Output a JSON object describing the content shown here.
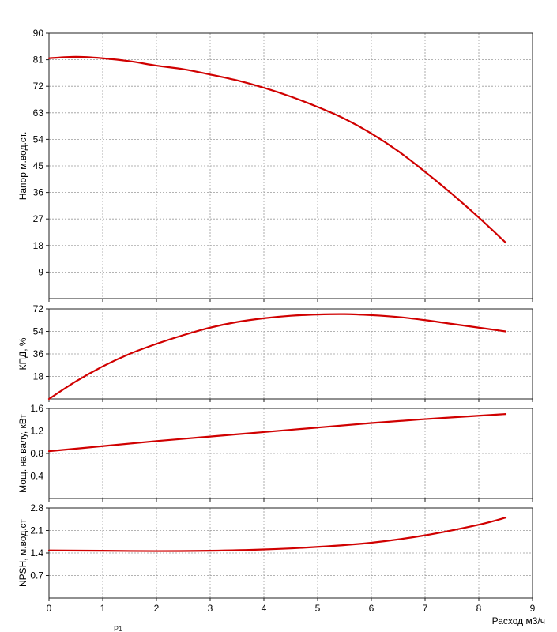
{
  "chart_data": [
    {
      "type": "line",
      "ylabel": "Напор м.вод.ст.",
      "ylim": [
        0,
        90
      ],
      "yticks": [
        9,
        18,
        27,
        36,
        45,
        54,
        63,
        72,
        81,
        90
      ],
      "xlim": [
        0,
        9
      ],
      "grid": true,
      "color": "#d00000",
      "x": [
        0,
        0.5,
        1,
        1.5,
        2,
        2.5,
        3,
        3.5,
        4,
        4.5,
        5,
        5.5,
        6,
        6.5,
        7,
        7.5,
        8,
        8.5
      ],
      "y": [
        81.5,
        82,
        81.5,
        80.5,
        79,
        77.8,
        76,
        74,
        71.5,
        68.5,
        65,
        61,
        56,
        50,
        43,
        35.5,
        27.5,
        19
      ]
    },
    {
      "type": "line",
      "ylabel": "КПД, %",
      "ylim": [
        0,
        72
      ],
      "yticks": [
        18,
        36,
        54,
        72
      ],
      "xlim": [
        0,
        9
      ],
      "grid": true,
      "color": "#d00000",
      "x": [
        0,
        0.5,
        1,
        1.5,
        2,
        2.5,
        3,
        3.5,
        4,
        4.5,
        5,
        5.5,
        6,
        6.5,
        7,
        7.5,
        8,
        8.5
      ],
      "y": [
        0,
        14,
        26,
        36,
        44,
        51,
        57,
        61.5,
        64.5,
        66.5,
        67.5,
        67.8,
        67,
        65.5,
        63,
        60,
        57,
        54
      ]
    },
    {
      "type": "line",
      "ylabel": "Мощ. на валу, кВт",
      "ylim": [
        0,
        1.6
      ],
      "yticks": [
        0.4,
        0.8,
        1.2,
        1.6
      ],
      "xlim": [
        0,
        9
      ],
      "grid": true,
      "color": "#d00000",
      "x": [
        0,
        1,
        2,
        3,
        4,
        5,
        6,
        7,
        8,
        8.5
      ],
      "y": [
        0.84,
        0.93,
        1.02,
        1.1,
        1.18,
        1.26,
        1.34,
        1.41,
        1.47,
        1.5
      ]
    },
    {
      "type": "line",
      "ylabel": "NPSH, м.вод.ст",
      "ylim": [
        0,
        2.8
      ],
      "yticks": [
        0.7,
        1.4,
        2.1,
        2.8
      ],
      "xlim": [
        0,
        9
      ],
      "xticks": [
        0,
        1,
        2,
        3,
        4,
        5,
        6,
        7,
        8,
        9
      ],
      "xlabel": "Расход м3/ч",
      "grid": true,
      "color": "#d00000",
      "x": [
        0,
        1,
        2,
        3,
        4,
        5,
        6,
        7,
        8,
        8.5
      ],
      "y": [
        1.48,
        1.47,
        1.46,
        1.47,
        1.51,
        1.59,
        1.72,
        1.95,
        2.28,
        2.5
      ]
    }
  ],
  "footer": {
    "label": "P1"
  }
}
